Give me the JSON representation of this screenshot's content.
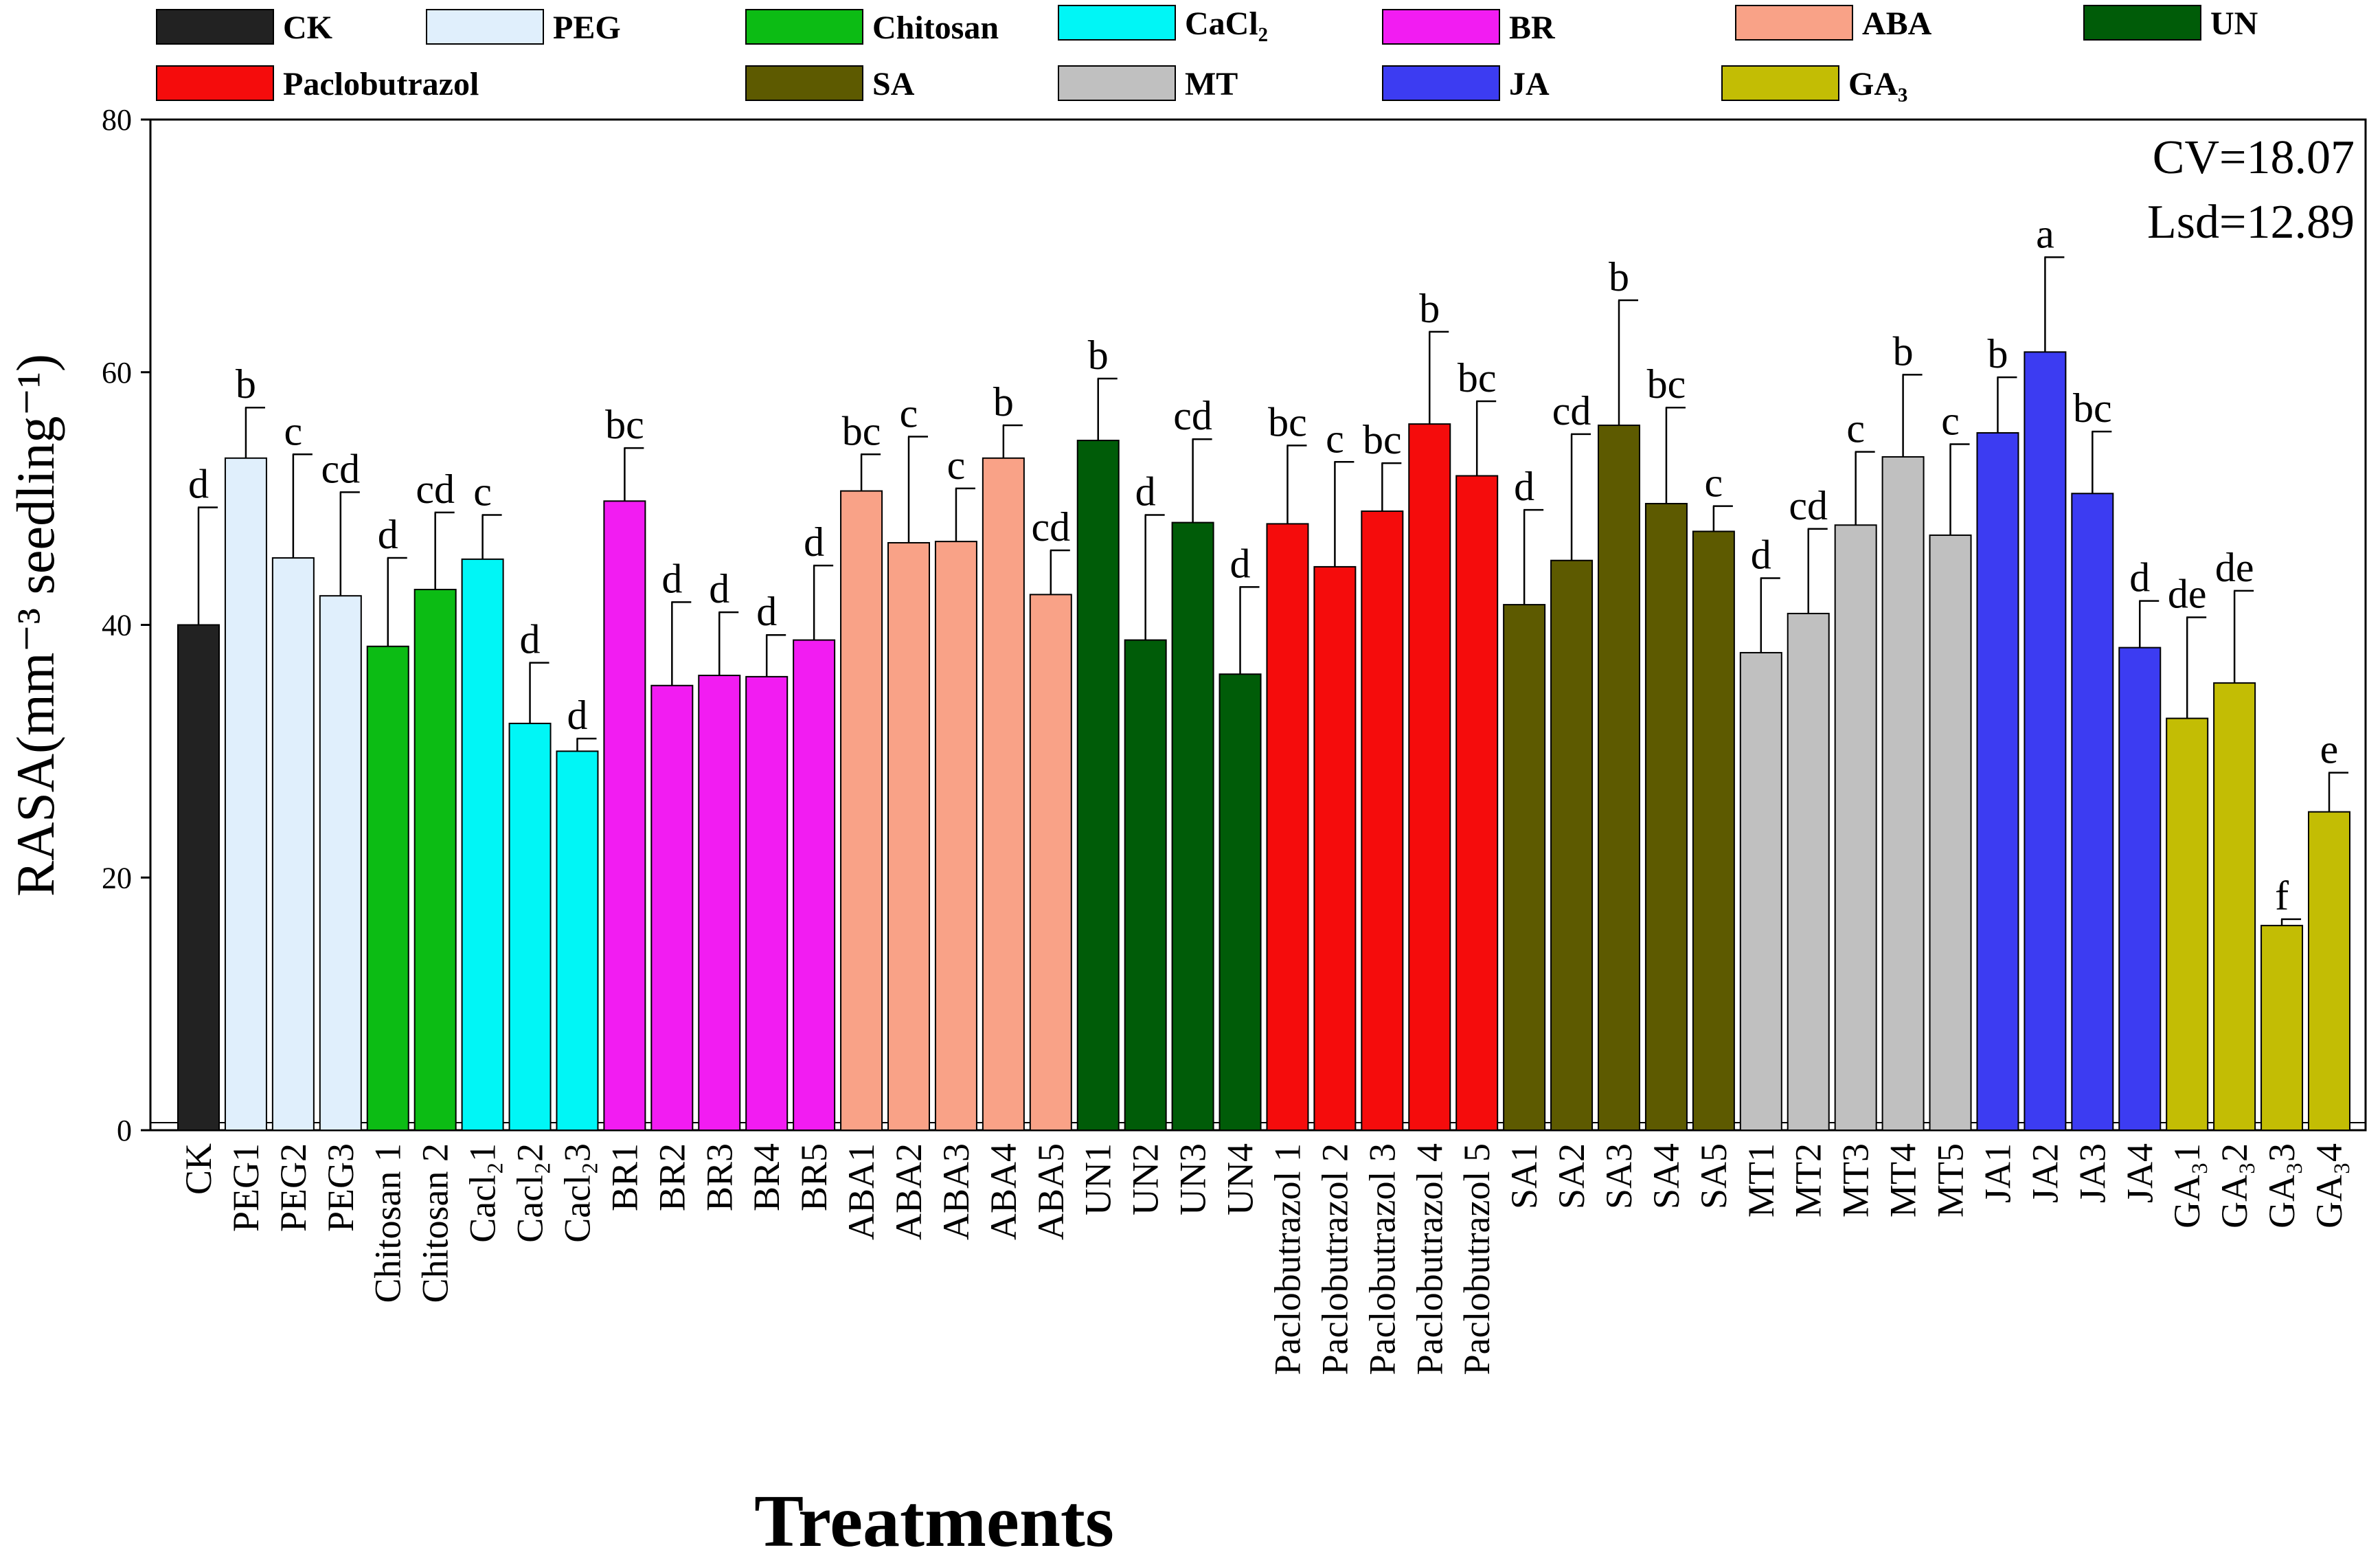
{
  "chart_data": {
    "type": "bar",
    "xlabel": "Treatments",
    "ylabel": "RASA(mm⁻³ seedling⁻¹)",
    "ylim": [
      0,
      80
    ],
    "yticks": [
      0,
      20,
      40,
      60,
      80
    ],
    "grid": false,
    "annotations": [
      "CV=18.07",
      "Lsd=12.89"
    ],
    "legend": [
      {
        "name": "CK",
        "color": "#222222"
      },
      {
        "name": "PEG",
        "color": "#e0effc"
      },
      {
        "name": "Chitosan",
        "color": "#0cbc14"
      },
      {
        "name": "CaCl₂",
        "color": "#00f6f6"
      },
      {
        "name": "BR",
        "color": "#f21cf2"
      },
      {
        "name": "ABA",
        "color": "#f9a287"
      },
      {
        "name": "UN",
        "color": "#005c08"
      },
      {
        "name": "Paclobutrazol",
        "color": "#f50c0c"
      },
      {
        "name": "SA",
        "color": "#5d5a00"
      },
      {
        "name": "MT",
        "color": "#c0c0c0"
      },
      {
        "name": "JA",
        "color": "#3c3cf2"
      },
      {
        "name": "GA₃",
        "color": "#c3bd04"
      }
    ],
    "categories": [
      "CK",
      "PEG1",
      "PEG2",
      "PEG3",
      "Chitosan 1",
      "Chitosan 2",
      "Cacl₂1",
      "Cacl₂2",
      "Cacl₂3",
      "BR1",
      "BR2",
      "BR3",
      "BR4",
      "BR5",
      "ABA1",
      "ABA2",
      "ABA3",
      "ABA4",
      "ABA5",
      "UN1",
      "UN2",
      "UN3",
      "UN4",
      "Paclobutrazol 1",
      "Paclobutrazol 2",
      "Paclobutrazol 3",
      "Paclobutrazol 4",
      "Paclobutrazol 5",
      "SA1",
      "SA2",
      "SA3",
      "SA4",
      "SA5",
      "MT1",
      "MT2",
      "MT3",
      "MT4",
      "MT5",
      "JA1",
      "JA2",
      "JA3",
      "JA4",
      "GA₃1",
      "GA₃2",
      "GA₃3",
      "GA₃4"
    ],
    "values": [
      40.0,
      53.2,
      45.3,
      42.3,
      38.3,
      42.8,
      45.2,
      32.2,
      30.0,
      49.8,
      35.2,
      36.0,
      35.9,
      38.8,
      50.6,
      46.5,
      46.6,
      53.2,
      42.4,
      54.6,
      38.8,
      48.1,
      36.1,
      48.0,
      44.6,
      49.0,
      55.9,
      51.8,
      41.6,
      45.1,
      55.8,
      49.6,
      47.4,
      37.8,
      40.9,
      47.9,
      53.3,
      47.1,
      55.2,
      61.6,
      50.4,
      38.2,
      32.6,
      35.4,
      16.2,
      25.2
    ],
    "errors": [
      9.3,
      4.0,
      8.2,
      8.2,
      7.0,
      6.1,
      3.5,
      4.8,
      1.0,
      4.2,
      6.6,
      5.0,
      3.3,
      5.9,
      2.9,
      8.4,
      4.2,
      2.6,
      3.5,
      4.9,
      9.9,
      6.6,
      6.9,
      6.2,
      8.3,
      3.8,
      7.3,
      5.9,
      7.5,
      10.0,
      9.9,
      7.6,
      2.0,
      5.9,
      6.7,
      5.8,
      6.5,
      7.2,
      4.4,
      7.5,
      4.9,
      3.7,
      8.0,
      7.3,
      0.5,
      3.1
    ],
    "letters": [
      "d",
      "b",
      "c",
      "cd",
      "d",
      "cd",
      "c",
      "d",
      "d",
      "bc",
      "d",
      "d",
      "d",
      "d",
      "bc",
      "c",
      "c",
      "b",
      "cd",
      "b",
      "d",
      "cd",
      "d",
      "bc",
      "c",
      "bc",
      "b",
      "bc",
      "d",
      "cd",
      "b",
      "bc",
      "c",
      "d",
      "cd",
      "c",
      "b",
      "c",
      "b",
      "a",
      "bc",
      "d",
      "de",
      "de",
      "f",
      "e"
    ],
    "groups": [
      "CK",
      "PEG",
      "PEG",
      "PEG",
      "Chitosan",
      "Chitosan",
      "CaCl₂",
      "CaCl₂",
      "CaCl₂",
      "BR",
      "BR",
      "BR",
      "BR",
      "BR",
      "ABA",
      "ABA",
      "ABA",
      "ABA",
      "ABA",
      "UN",
      "UN",
      "UN",
      "UN",
      "Paclobutrazol",
      "Paclobutrazol",
      "Paclobutrazol",
      "Paclobutrazol",
      "Paclobutrazol",
      "SA",
      "SA",
      "SA",
      "SA",
      "SA",
      "MT",
      "MT",
      "MT",
      "MT",
      "MT",
      "JA",
      "JA",
      "JA",
      "JA",
      "GA₃",
      "GA₃",
      "GA₃",
      "GA₃"
    ]
  }
}
